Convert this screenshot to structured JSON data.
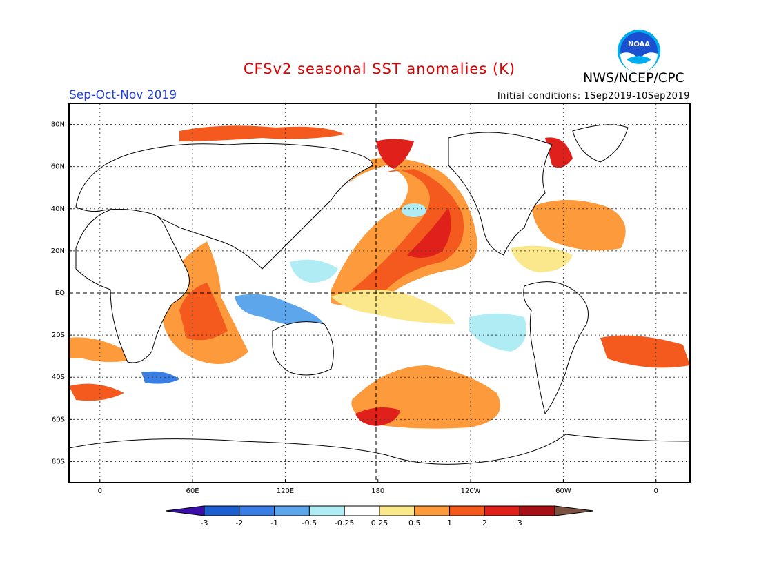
{
  "title": "CFSv2 seasonal SST anomalies (K)",
  "organization": "NWS/NCEP/CPC",
  "logo_text": "NOAA",
  "season": "Sep-Oct-Nov 2019",
  "initial_conditions": "Initial conditions: 1Sep2019-10Sep2019",
  "axes": {
    "lat_labels": [
      "80N",
      "60N",
      "40N",
      "20N",
      "EQ",
      "20S",
      "40S",
      "60S",
      "80S"
    ],
    "lat_values": [
      80,
      60,
      40,
      20,
      0,
      -20,
      -40,
      -60,
      -80
    ],
    "lon_labels": [
      "0",
      "60E",
      "120E",
      "180",
      "120W",
      "60W",
      "0"
    ],
    "lon_values": [
      0,
      60,
      120,
      180,
      240,
      300,
      360
    ],
    "lon_range": [
      -20,
      382
    ],
    "lat_range": [
      -90,
      90
    ],
    "reference_lines": [
      "EQ",
      "180"
    ]
  },
  "colorbar": {
    "tick_labels": [
      "-3",
      "-2",
      "-1",
      "-0.5",
      "-0.25",
      "0.25",
      "0.5",
      "1",
      "2",
      "3"
    ],
    "colors": [
      "#3a0ea8",
      "#1e5fd0",
      "#3a7ee4",
      "#5ea6ec",
      "#b0ecf4",
      "#ffffff",
      "#fce88c",
      "#fc9a3c",
      "#f45a1e",
      "#e0201a",
      "#a50f15",
      "#7a5040"
    ]
  },
  "colors": {
    "title": "#e00000",
    "season": "#2040e0",
    "noaa_blue": "#1a4fd0"
  }
}
